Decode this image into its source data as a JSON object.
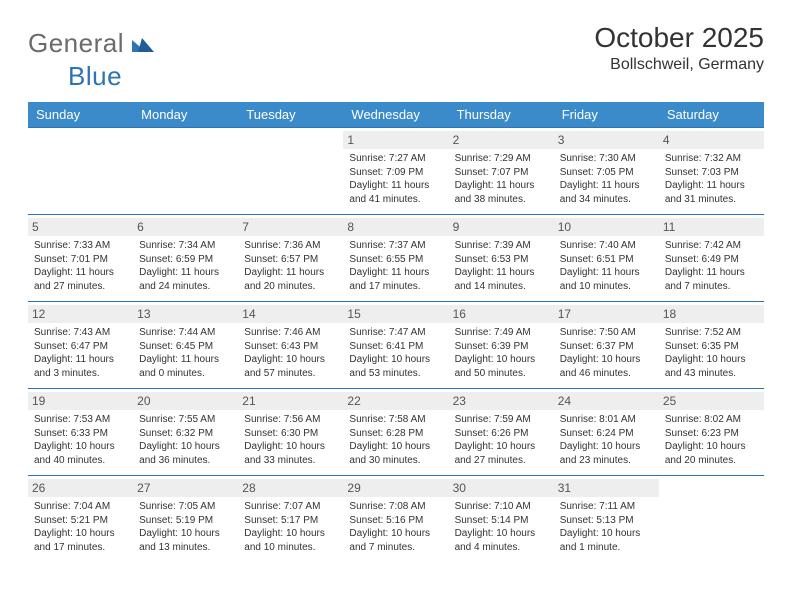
{
  "brand": {
    "part1": "General",
    "part2": "Blue",
    "color1": "#6b6b6b",
    "color2": "#2e74b5"
  },
  "title": "October 2025",
  "location": "Bollschweil, Germany",
  "theme": {
    "header_bg": "#3b8bca",
    "header_fg": "#ffffff",
    "cell_border": "#2e74b5",
    "daynum_bg": "#eeeeee",
    "daynum_fg": "#555555",
    "page_bg": "#ffffff",
    "text_color": "#333333",
    "title_fontsize": 28,
    "location_fontsize": 16,
    "dayheader_fontsize": 13,
    "daynum_fontsize": 12,
    "info_fontsize": 10
  },
  "day_headers": [
    "Sunday",
    "Monday",
    "Tuesday",
    "Wednesday",
    "Thursday",
    "Friday",
    "Saturday"
  ],
  "weeks": [
    [
      null,
      null,
      null,
      {
        "n": "1",
        "sr": "7:27 AM",
        "ss": "7:09 PM",
        "dl": "11 hours and 41 minutes."
      },
      {
        "n": "2",
        "sr": "7:29 AM",
        "ss": "7:07 PM",
        "dl": "11 hours and 38 minutes."
      },
      {
        "n": "3",
        "sr": "7:30 AM",
        "ss": "7:05 PM",
        "dl": "11 hours and 34 minutes."
      },
      {
        "n": "4",
        "sr": "7:32 AM",
        "ss": "7:03 PM",
        "dl": "11 hours and 31 minutes."
      }
    ],
    [
      {
        "n": "5",
        "sr": "7:33 AM",
        "ss": "7:01 PM",
        "dl": "11 hours and 27 minutes."
      },
      {
        "n": "6",
        "sr": "7:34 AM",
        "ss": "6:59 PM",
        "dl": "11 hours and 24 minutes."
      },
      {
        "n": "7",
        "sr": "7:36 AM",
        "ss": "6:57 PM",
        "dl": "11 hours and 20 minutes."
      },
      {
        "n": "8",
        "sr": "7:37 AM",
        "ss": "6:55 PM",
        "dl": "11 hours and 17 minutes."
      },
      {
        "n": "9",
        "sr": "7:39 AM",
        "ss": "6:53 PM",
        "dl": "11 hours and 14 minutes."
      },
      {
        "n": "10",
        "sr": "7:40 AM",
        "ss": "6:51 PM",
        "dl": "11 hours and 10 minutes."
      },
      {
        "n": "11",
        "sr": "7:42 AM",
        "ss": "6:49 PM",
        "dl": "11 hours and 7 minutes."
      }
    ],
    [
      {
        "n": "12",
        "sr": "7:43 AM",
        "ss": "6:47 PM",
        "dl": "11 hours and 3 minutes."
      },
      {
        "n": "13",
        "sr": "7:44 AM",
        "ss": "6:45 PM",
        "dl": "11 hours and 0 minutes."
      },
      {
        "n": "14",
        "sr": "7:46 AM",
        "ss": "6:43 PM",
        "dl": "10 hours and 57 minutes."
      },
      {
        "n": "15",
        "sr": "7:47 AM",
        "ss": "6:41 PM",
        "dl": "10 hours and 53 minutes."
      },
      {
        "n": "16",
        "sr": "7:49 AM",
        "ss": "6:39 PM",
        "dl": "10 hours and 50 minutes."
      },
      {
        "n": "17",
        "sr": "7:50 AM",
        "ss": "6:37 PM",
        "dl": "10 hours and 46 minutes."
      },
      {
        "n": "18",
        "sr": "7:52 AM",
        "ss": "6:35 PM",
        "dl": "10 hours and 43 minutes."
      }
    ],
    [
      {
        "n": "19",
        "sr": "7:53 AM",
        "ss": "6:33 PM",
        "dl": "10 hours and 40 minutes."
      },
      {
        "n": "20",
        "sr": "7:55 AM",
        "ss": "6:32 PM",
        "dl": "10 hours and 36 minutes."
      },
      {
        "n": "21",
        "sr": "7:56 AM",
        "ss": "6:30 PM",
        "dl": "10 hours and 33 minutes."
      },
      {
        "n": "22",
        "sr": "7:58 AM",
        "ss": "6:28 PM",
        "dl": "10 hours and 30 minutes."
      },
      {
        "n": "23",
        "sr": "7:59 AM",
        "ss": "6:26 PM",
        "dl": "10 hours and 27 minutes."
      },
      {
        "n": "24",
        "sr": "8:01 AM",
        "ss": "6:24 PM",
        "dl": "10 hours and 23 minutes."
      },
      {
        "n": "25",
        "sr": "8:02 AM",
        "ss": "6:23 PM",
        "dl": "10 hours and 20 minutes."
      }
    ],
    [
      {
        "n": "26",
        "sr": "7:04 AM",
        "ss": "5:21 PM",
        "dl": "10 hours and 17 minutes."
      },
      {
        "n": "27",
        "sr": "7:05 AM",
        "ss": "5:19 PM",
        "dl": "10 hours and 13 minutes."
      },
      {
        "n": "28",
        "sr": "7:07 AM",
        "ss": "5:17 PM",
        "dl": "10 hours and 10 minutes."
      },
      {
        "n": "29",
        "sr": "7:08 AM",
        "ss": "5:16 PM",
        "dl": "10 hours and 7 minutes."
      },
      {
        "n": "30",
        "sr": "7:10 AM",
        "ss": "5:14 PM",
        "dl": "10 hours and 4 minutes."
      },
      {
        "n": "31",
        "sr": "7:11 AM",
        "ss": "5:13 PM",
        "dl": "10 hours and 1 minute."
      },
      null
    ]
  ],
  "labels": {
    "sunrise": "Sunrise:",
    "sunset": "Sunset:",
    "daylight": "Daylight:"
  }
}
